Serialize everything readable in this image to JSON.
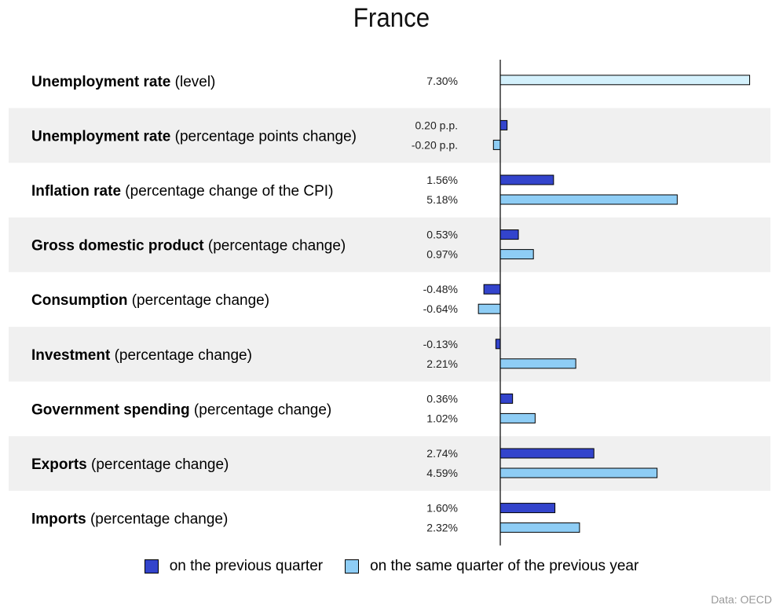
{
  "chart_data": {
    "type": "bar",
    "orientation": "horizontal",
    "title": "France",
    "categories": [
      {
        "name": "Unemployment rate",
        "detail": "(level)"
      },
      {
        "name": "Unemployment rate",
        "detail": "(percentage points change)"
      },
      {
        "name": "Inflation rate",
        "detail": "(percentage change of the CPI)"
      },
      {
        "name": "Gross domestic product",
        "detail": "(percentage change)"
      },
      {
        "name": "Consumption",
        "detail": "(percentage change)"
      },
      {
        "name": "Investment",
        "detail": "(percentage change)"
      },
      {
        "name": "Government spending",
        "detail": "(percentage change)"
      },
      {
        "name": "Exports",
        "detail": "(percentage change)"
      },
      {
        "name": "Imports",
        "detail": "(percentage change)"
      }
    ],
    "series": [
      {
        "name": "on the previous quarter",
        "color": "#3344cc",
        "values": [
          null,
          0.2,
          1.56,
          0.53,
          -0.48,
          -0.13,
          0.36,
          2.74,
          1.6
        ],
        "labels": [
          "",
          "0.20 p.p.",
          "1.56%",
          "0.53%",
          "-0.48%",
          "-0.13%",
          "0.36%",
          "2.74%",
          "1.60%"
        ]
      },
      {
        "name": "on the same quarter of the previous year",
        "color": "#8ecdf5",
        "values": [
          null,
          -0.2,
          5.18,
          0.97,
          -0.64,
          2.21,
          1.02,
          4.59,
          2.32
        ],
        "labels": [
          "",
          "-0.20 p.p.",
          "5.18%",
          "0.97%",
          "-0.64%",
          "2.21%",
          "1.02%",
          "4.59%",
          "2.32%"
        ]
      }
    ],
    "level_row": {
      "value": 7.3,
      "label": "7.30%",
      "color": "#d4f1fc"
    },
    "row_shading": "alternating",
    "shade_color": "#f0f0f0",
    "source": "Data: OECD"
  }
}
